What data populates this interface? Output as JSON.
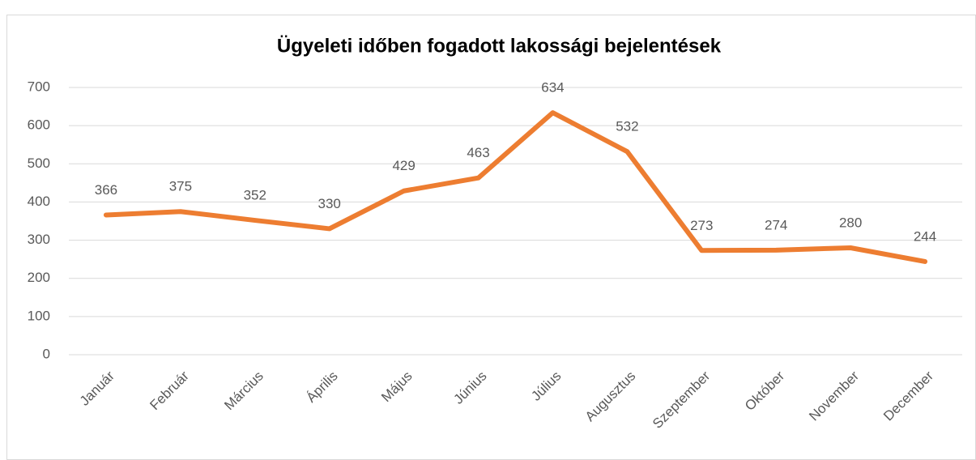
{
  "chart_data": {
    "type": "line",
    "title": "Ügyeleti időben fogadott lakossági bejelentések",
    "categories": [
      "Január",
      "Február",
      "Március",
      "Április",
      "Május",
      "Június",
      "Július",
      "Augusztus",
      "Szeptember",
      "Október",
      "November",
      "December"
    ],
    "values": [
      366,
      375,
      352,
      330,
      429,
      463,
      634,
      532,
      273,
      274,
      280,
      244
    ],
    "color": "#ed7d31",
    "ylim": [
      0,
      700
    ],
    "yticks": [
      0,
      100,
      200,
      300,
      400,
      500,
      600,
      700
    ],
    "grid": true
  }
}
